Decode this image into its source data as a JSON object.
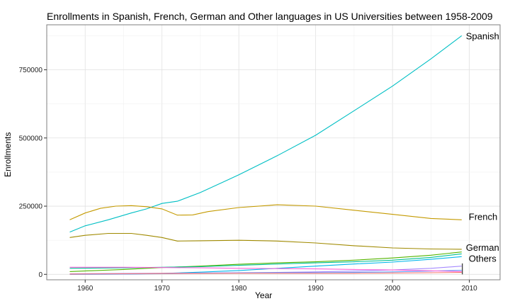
{
  "chart_data": {
    "type": "line",
    "title": "Enrollments in Spanish, French, German and Other languages in US Universities between 1958-2009",
    "xlabel": "Year",
    "ylabel": "Enrollments",
    "xlim": [
      1955,
      2014
    ],
    "ylim": [
      -20000,
      915000
    ],
    "x_ticks": [
      1960,
      1970,
      1980,
      1990,
      2000,
      2010
    ],
    "y_ticks": [
      0,
      250000,
      500000,
      750000
    ],
    "y_tick_labels": [
      "0",
      "250000",
      "500000",
      "750000"
    ],
    "grid": true,
    "series": [
      {
        "name": "Spanish",
        "color": "#00BFC4",
        "x": [
          1958,
          1960,
          1963,
          1966,
          1968,
          1970,
          1972,
          1975,
          1980,
          1985,
          1990,
          1995,
          2000,
          2005,
          2009
        ],
        "y": [
          155000,
          178000,
          200000,
          225000,
          240000,
          260000,
          268000,
          300000,
          365000,
          435000,
          510000,
          600000,
          690000,
          790000,
          875000
        ]
      },
      {
        "name": "French",
        "color": "#C49A00",
        "x": [
          1958,
          1960,
          1962,
          1964,
          1966,
          1968,
          1970,
          1972,
          1974,
          1976,
          1980,
          1985,
          1990,
          1995,
          2000,
          2005,
          2009
        ],
        "y": [
          200000,
          225000,
          242000,
          250000,
          252000,
          248000,
          240000,
          217000,
          218000,
          230000,
          245000,
          255000,
          250000,
          235000,
          220000,
          205000,
          200000
        ]
      },
      {
        "name": "German",
        "color": "#A08A00",
        "x": [
          1958,
          1960,
          1963,
          1966,
          1968,
          1970,
          1972,
          1975,
          1980,
          1985,
          1990,
          1995,
          2000,
          2005,
          2009
        ],
        "y": [
          135000,
          143000,
          150000,
          150000,
          143000,
          135000,
          122000,
          123000,
          125000,
          122000,
          115000,
          105000,
          97000,
          93000,
          92000
        ]
      },
      {
        "name": "",
        "color": "#53B400",
        "x": [
          1958,
          1965,
          1970,
          1975,
          1980,
          1985,
          1990,
          1995,
          2000,
          2005,
          2009
        ],
        "y": [
          10000,
          18000,
          25000,
          30000,
          37000,
          42000,
          46000,
          52000,
          60000,
          70000,
          82000
        ]
      },
      {
        "name": "",
        "color": "#00B6EB",
        "x": [
          1958,
          1965,
          1970,
          1975,
          1980,
          1985,
          1990,
          1995,
          2000,
          2005,
          2009
        ],
        "y": [
          500,
          1000,
          3000,
          8000,
          14000,
          22000,
          30000,
          38000,
          45000,
          55000,
          65000
        ]
      },
      {
        "name": "",
        "color": "#00C094",
        "x": [
          1958,
          1965,
          1970,
          1975,
          1980,
          1985,
          1990,
          1995,
          2000,
          2005,
          2009
        ],
        "y": [
          22000,
          24000,
          26000,
          28000,
          33000,
          38000,
          42000,
          46000,
          52000,
          62000,
          75000
        ]
      },
      {
        "name": "",
        "color": "#A58AFF",
        "x": [
          1958,
          1965,
          1970,
          1975,
          1980,
          1985,
          1990,
          1995,
          2000,
          2005,
          2009
        ],
        "y": [
          2000,
          3000,
          4000,
          5000,
          6000,
          7000,
          9000,
          12000,
          16000,
          22000,
          30000
        ]
      },
      {
        "name": "",
        "color": "#619CFF",
        "x": [
          1958,
          1965,
          1970,
          1975,
          1980,
          1985,
          1990,
          1995,
          2000,
          2005,
          2009
        ],
        "y": [
          0,
          1000,
          2000,
          4000,
          5000,
          6000,
          6000,
          7000,
          9000,
          12000,
          15000
        ]
      },
      {
        "name": "",
        "color": "#FB61D7",
        "x": [
          1958,
          1965,
          1970,
          1975,
          1980,
          1985,
          1990,
          1995,
          2000,
          2005,
          2009
        ],
        "y": [
          26000,
          26000,
          25000,
          24000,
          22000,
          21000,
          20000,
          18000,
          16000,
          13000,
          10000
        ]
      },
      {
        "name": "",
        "color": "#F8766D",
        "x": [
          1958,
          1965,
          1970,
          1975,
          1980,
          1985,
          1990,
          1995,
          2000,
          2005,
          2009
        ],
        "y": [
          1000,
          2000,
          3000,
          3000,
          4000,
          4000,
          4000,
          4000,
          5000,
          6000,
          7000
        ]
      }
    ],
    "annotations": [
      "Spanish",
      "French",
      "German",
      "Others"
    ]
  }
}
